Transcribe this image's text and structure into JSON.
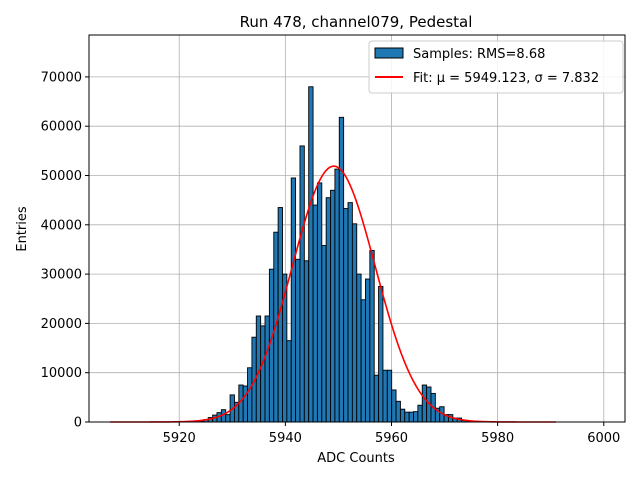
{
  "chart_data": {
    "type": "bar",
    "title": "Run 478, channel079, Pedestal",
    "xlabel": "ADC Counts",
    "ylabel": "Entries",
    "xlim": [
      5903,
      6004
    ],
    "ylim": [
      0,
      78500
    ],
    "xticks": [
      5920,
      5940,
      5960,
      5980,
      6000
    ],
    "yticks": [
      0,
      10000,
      20000,
      30000,
      40000,
      50000,
      60000,
      70000
    ],
    "grid": true,
    "legend_position": "top-right",
    "histogram": {
      "name": "Samples: RMS=8.68",
      "color": "#1f77b4",
      "edgecolor": "#000000",
      "bin_start": 5923.0,
      "bin_width": 0.823,
      "counts": [
        50,
        200,
        500,
        900,
        1400,
        1900,
        2500,
        1500,
        5500,
        4000,
        7500,
        7300,
        11000,
        17200,
        21500,
        19500,
        21500,
        31000,
        38500,
        43500,
        30000,
        16500,
        49500,
        33000,
        56000,
        32700,
        68000,
        44000,
        48500,
        35800,
        45500,
        47000,
        51300,
        61800,
        43300,
        44500,
        40200,
        30000,
        24800,
        29000,
        34800,
        9500,
        27500,
        10500,
        10500,
        6500,
        4200,
        2600,
        2000,
        2000,
        2100,
        3400,
        7500,
        7100,
        5800,
        2800,
        3100,
        1500,
        1500,
        800,
        800,
        300,
        200,
        100
      ]
    },
    "fit": {
      "name": "Fit: μ = 5949.123, σ = 7.832",
      "mu": 5949.123,
      "sigma": 7.832,
      "amplitude": 51900,
      "x_range": [
        5907,
        5991
      ],
      "color": "#ff0000"
    }
  }
}
